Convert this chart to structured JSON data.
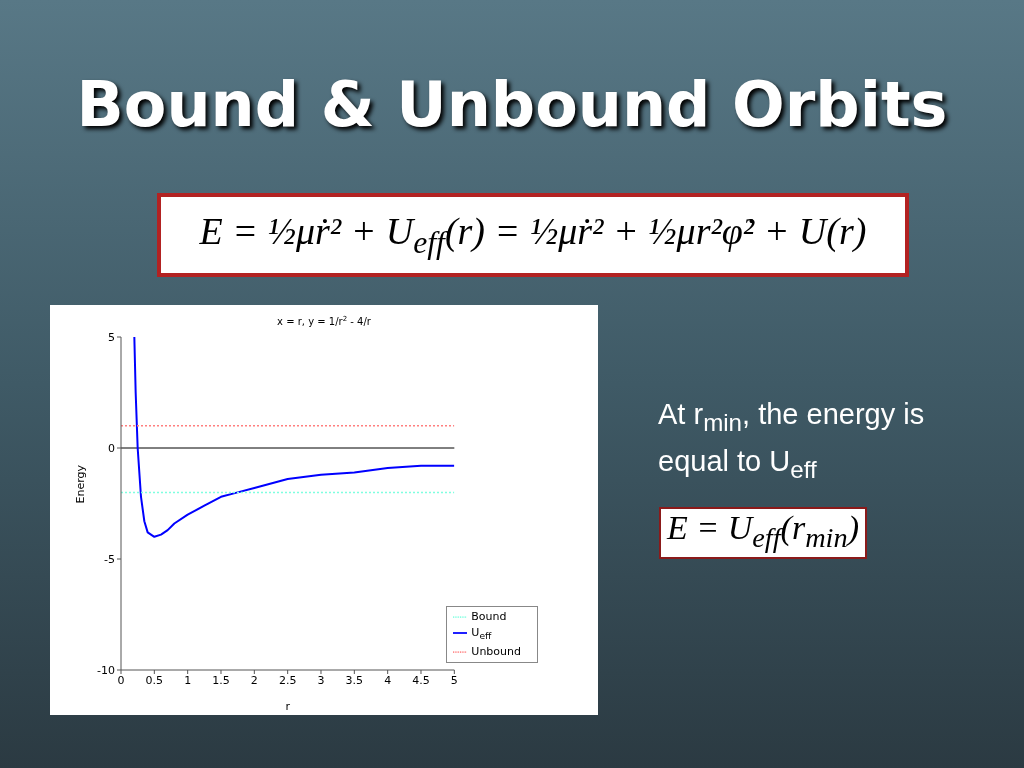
{
  "chart_data": {
    "type": "line",
    "title": "Bound & Unbound Orbits",
    "subtitle": "x = r, y = 1/r$^{2}$ - 4/r",
    "xlabel": "r",
    "ylabel": "Energy",
    "annotations": [
      "E = ½μṙ² + U$_{eff}$(r) = ½μṙ² + ½μr²φ̇² + U(r)",
      "At r$_{min}$, the energy is equal to U$_{eff}$",
      "E = U$_{eff}$(r$_{min}$)"
    ],
    "series": [
      {
        "name": "U$_{eff}$",
        "color": "#0000ff",
        "line_style": "solid",
        "x": [
          0.2,
          0.22,
          0.25,
          0.3,
          0.35,
          0.4,
          0.5,
          0.6,
          0.7,
          0.8,
          1,
          1.25,
          1.5,
          1.75,
          2,
          2.5,
          3,
          3.5,
          4,
          4.5,
          5
        ],
        "values": [
          5,
          2.5,
          0,
          -2.2,
          -3.3,
          -3.8,
          -4,
          -3.9,
          -3.7,
          -3.4,
          -3,
          -2.6,
          -2.2,
          -2,
          -1.8,
          -1.4,
          -1.2,
          -1.1,
          -0.9,
          -0.8,
          -0.8
        ]
      },
      {
        "name": "Unbound",
        "color": "#ff7f7f",
        "line_style": "dotted",
        "x": [
          0,
          5
        ],
        "values": [
          1,
          1
        ]
      },
      {
        "name": "Bound",
        "color": "#7fffe0",
        "line_style": "dotted",
        "x": [
          0,
          5
        ],
        "values": [
          -2,
          -2
        ]
      }
    ],
    "ref_lines": [
      {
        "axis": "y",
        "value": 0,
        "color": "#000000"
      }
    ],
    "xlim": [
      0,
      5
    ],
    "ylim": [
      -10,
      5
    ],
    "xticks": [
      0,
      0.5,
      1,
      1.5,
      2,
      2.5,
      3,
      3.5,
      4,
      4.5,
      5
    ],
    "yticks": [
      -10,
      -5,
      0,
      5
    ],
    "grid": false,
    "legend": "bottom right",
    "marker": "none"
  }
}
